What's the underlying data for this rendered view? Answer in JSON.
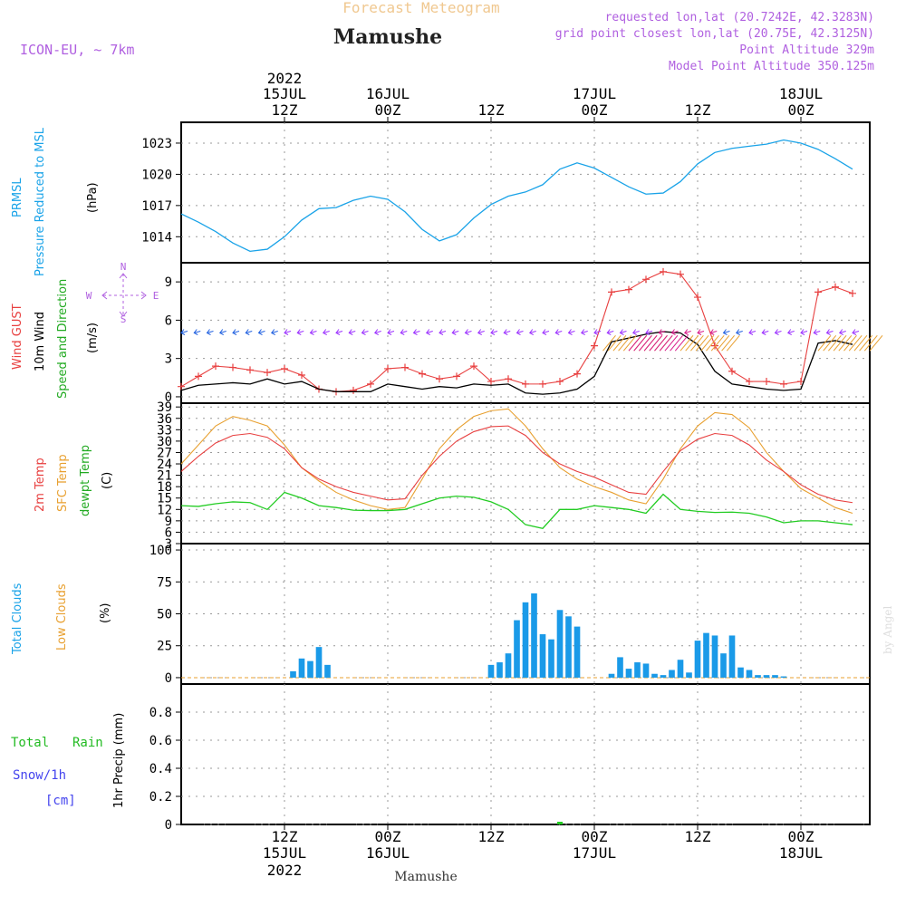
{
  "header": {
    "title_top": "Forecast Meteogram",
    "place": "Mamushe",
    "model": "ICON-EU, ~ 7km",
    "requested": "requested lon,lat (20.7242E, 42.3283N)",
    "grid_point": "grid point closest lon,lat (20.75E, 42.3125N)",
    "point_alt": "Point Altitude 329m",
    "model_alt": "Model Point Altitude 350.125m",
    "footer_place": "Mamushe",
    "watermark": "by Angel"
  },
  "colors": {
    "pressure": "#1aa3e8",
    "gust": "#e84040",
    "wind": "#000000",
    "dir": "#22cc22",
    "purple": "#9b30ff",
    "temp2m": "#e84040",
    "sfc": "#e8a030",
    "dewpt": "#22cc22",
    "clouds": "#1a9ae8",
    "rain": "#22cc22",
    "snow": "#4444ee"
  },
  "time_axis": {
    "top_labels": [
      {
        "l1": "2022",
        "l2": "15JUL",
        "l3": "12Z",
        "pos": 12
      },
      {
        "l1": "",
        "l2": "16JUL",
        "l3": "00Z",
        "pos": 24
      },
      {
        "l1": "",
        "l2": "",
        "l3": "12Z",
        "pos": 36
      },
      {
        "l1": "",
        "l2": "17JUL",
        "l3": "00Z",
        "pos": 48
      },
      {
        "l1": "",
        "l2": "",
        "l3": "12Z",
        "pos": 60
      },
      {
        "l1": "",
        "l2": "18JUL",
        "l3": "00Z",
        "pos": 72
      }
    ],
    "bottom_labels": [
      {
        "l1": "12Z",
        "l2": "15JUL",
        "l3": "2022",
        "pos": 12
      },
      {
        "l1": "00Z",
        "l2": "16JUL",
        "l3": "",
        "pos": 24
      },
      {
        "l1": "12Z",
        "l2": "",
        "l3": "",
        "pos": 36
      },
      {
        "l1": "00Z",
        "l2": "17JUL",
        "l3": "",
        "pos": 48
      },
      {
        "l1": "12Z",
        "l2": "",
        "l3": "",
        "pos": 60
      },
      {
        "l1": "00Z",
        "l2": "18JUL",
        "l3": "",
        "pos": 72
      }
    ]
  },
  "panel_labels": {
    "pressure": {
      "l1": "PRMSL",
      "l2": "Pressure Reduced to MSL",
      "unit": "(hPa)"
    },
    "wind": {
      "l1": "Wind GUST",
      "l2": "10m Wind",
      "l3": "Speed and Direction",
      "unit": "(m/s)",
      "compass_n": "N",
      "compass_s": "S",
      "compass_w": "W",
      "compass_e": "E"
    },
    "temp": {
      "l1": "2m Temp",
      "l2": "SFC Temp",
      "l3": "dewpt Temp",
      "unit": "(C)"
    },
    "clouds": {
      "l1": "Total Clouds",
      "l2": "Low Clouds",
      "unit": "(%)"
    },
    "precip": {
      "l1": "Total",
      "l1b": "Rain",
      "l2": "Snow/1h",
      "l3": "[cm]",
      "unit": "1hr Precip (mm)"
    }
  },
  "chart_data": [
    {
      "type": "line",
      "name_key": "pressure",
      "ylim": [
        1011.5,
        1025
      ],
      "yticks": [
        1014,
        1017,
        1020,
        1023
      ],
      "x": [
        0,
        2,
        4,
        6,
        8,
        10,
        12,
        14,
        16,
        18,
        20,
        22,
        24,
        26,
        28,
        30,
        32,
        34,
        36,
        38,
        40,
        42,
        44,
        46,
        48,
        50,
        52,
        54,
        56,
        58,
        60,
        62,
        64,
        66,
        68,
        70,
        72,
        74,
        76,
        78
      ],
      "series": [
        {
          "values": [
            1016.2,
            1015.4,
            1014.5,
            1013.4,
            1012.6,
            1012.8,
            1014.0,
            1015.6,
            1016.7,
            1016.8,
            1017.5,
            1017.9,
            1017.6,
            1016.4,
            1014.7,
            1013.6,
            1014.2,
            1015.8,
            1017.1,
            1017.9,
            1018.3,
            1019.0,
            1020.5,
            1021.1,
            1020.6,
            1019.7,
            1018.8,
            1018.1,
            1018.2,
            1019.3,
            1021.0,
            1022.1,
            1022.5,
            1022.7,
            1022.9,
            1023.3,
            1023.0,
            1022.4,
            1021.5,
            1020.5
          ]
        }
      ]
    },
    {
      "type": "line",
      "name_key": "wind",
      "ylim": [
        -0.5,
        10.5
      ],
      "yticks": [
        0,
        3,
        6,
        9
      ],
      "x": [
        0,
        2,
        4,
        6,
        8,
        10,
        12,
        14,
        16,
        18,
        20,
        22,
        24,
        26,
        28,
        30,
        32,
        34,
        36,
        38,
        40,
        42,
        44,
        46,
        48,
        50,
        52,
        54,
        56,
        58,
        60,
        62,
        64,
        66,
        68,
        70,
        72,
        74,
        76,
        78
      ],
      "series": [
        {
          "values": [
            0.8,
            1.6,
            2.4,
            2.3,
            2.1,
            1.9,
            2.2,
            1.7,
            0.6,
            0.4,
            0.5,
            1.0,
            2.2,
            2.3,
            1.8,
            1.4,
            1.6,
            2.4,
            1.2,
            1.4,
            1.0,
            1.0,
            1.2,
            1.8,
            4.0,
            8.2,
            8.4,
            9.2,
            9.8,
            9.6,
            7.8,
            4.0,
            2.0,
            1.2,
            1.2,
            1.0,
            1.2,
            8.2,
            8.6,
            8.1
          ]
        },
        {
          "values": [
            0.5,
            0.9,
            1.0,
            1.1,
            1.0,
            1.4,
            1.0,
            1.2,
            0.6,
            0.4,
            0.4,
            0.4,
            1.0,
            0.8,
            0.6,
            0.8,
            0.7,
            1.0,
            0.9,
            1.0,
            0.3,
            0.2,
            0.3,
            0.6,
            1.6,
            4.3,
            4.6,
            4.9,
            5.1,
            5.0,
            4.1,
            2.0,
            1.0,
            0.8,
            0.6,
            0.5,
            0.6,
            4.2,
            4.4,
            4.1
          ]
        }
      ]
    },
    {
      "type": "line",
      "name_key": "temp",
      "ylim": [
        3,
        40
      ],
      "yticks": [
        3,
        6,
        9,
        12,
        15,
        18,
        21,
        24,
        27,
        30,
        33,
        36,
        39
      ],
      "x": [
        0,
        2,
        4,
        6,
        8,
        10,
        12,
        14,
        16,
        18,
        20,
        22,
        24,
        26,
        28,
        30,
        32,
        34,
        36,
        38,
        40,
        42,
        44,
        46,
        48,
        50,
        52,
        54,
        56,
        58,
        60,
        62,
        64,
        66,
        68,
        70,
        72,
        74,
        76,
        78
      ],
      "series": [
        {
          "values": [
            22,
            26,
            29.5,
            31.5,
            32,
            31,
            28,
            23,
            20,
            18,
            16.5,
            15.5,
            14.5,
            14.8,
            21,
            26,
            30,
            32.5,
            33.8,
            34,
            31.5,
            27,
            24,
            22,
            20.5,
            18.5,
            16.5,
            16,
            22,
            27.5,
            30.5,
            32,
            31.5,
            29,
            25,
            22,
            18.5,
            16,
            14.5,
            13.8
          ]
        },
        {
          "values": [
            24,
            29,
            34,
            36.5,
            35.5,
            34,
            29,
            23,
            19.5,
            16.5,
            14.5,
            13,
            12,
            12.5,
            20,
            28,
            33,
            36.5,
            38,
            38.5,
            34,
            28,
            23,
            20,
            18,
            16.5,
            14.5,
            13.5,
            20,
            28,
            34,
            37.5,
            37,
            33.5,
            27,
            22,
            17.5,
            15,
            12.5,
            11
          ]
        },
        {
          "values": [
            13,
            12.8,
            13.5,
            14,
            13.8,
            12,
            16.5,
            15,
            13,
            12.5,
            11.8,
            11.7,
            11.7,
            12,
            13.5,
            15,
            15.5,
            15.2,
            14,
            12,
            8,
            7,
            12,
            12,
            13,
            12.5,
            12,
            11,
            16,
            12,
            11.5,
            11.2,
            11.3,
            11,
            10,
            8.5,
            9,
            9,
            8.5,
            8
          ]
        }
      ]
    },
    {
      "type": "bar",
      "name_key": "clouds",
      "ylim": [
        -5,
        105
      ],
      "yticks": [
        0,
        25,
        50,
        75,
        100
      ],
      "x": [
        13,
        14,
        15,
        16,
        17,
        18,
        36,
        37,
        38,
        39,
        40,
        41,
        42,
        43,
        44,
        45,
        46,
        47,
        48,
        50,
        51,
        52,
        53,
        54,
        55,
        56,
        57,
        58,
        59,
        60,
        61,
        62,
        63,
        64,
        65,
        66,
        67,
        68,
        69,
        70,
        71
      ],
      "series": [
        {
          "values": [
            5,
            15,
            13,
            24,
            10,
            0,
            10,
            12,
            19,
            45,
            59,
            66,
            34,
            30,
            53,
            48,
            40,
            0,
            0,
            3,
            16,
            7,
            12,
            11,
            3,
            2,
            6,
            14,
            4,
            29,
            35,
            33,
            19,
            33,
            8,
            6,
            2,
            2,
            2,
            1,
            0
          ]
        }
      ]
    },
    {
      "type": "bar",
      "name_key": "precip",
      "ylim": [
        0,
        1
      ],
      "yticks": [
        0,
        0.2,
        0.4,
        0.6,
        0.8
      ],
      "x": [
        44
      ],
      "series": [
        {
          "values": [
            0.005
          ]
        }
      ]
    }
  ]
}
